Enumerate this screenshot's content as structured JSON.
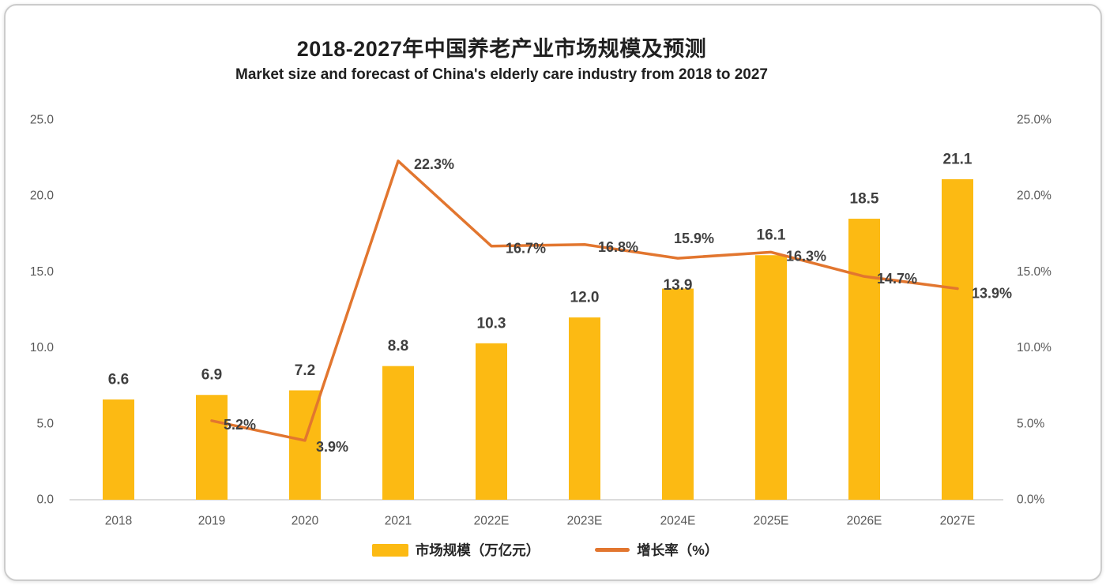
{
  "chart_data": {
    "type": "bar+line",
    "title": "2018-2027年中国养老产业市场规模及预测",
    "subtitle": "Market size and forecast of China's elderly care industry from 2018 to 2027",
    "categories": [
      "2018",
      "2019",
      "2020",
      "2021",
      "2022E",
      "2023E",
      "2024E",
      "2025E",
      "2026E",
      "2027E"
    ],
    "series": [
      {
        "name": "市场规模（万亿元）",
        "type": "bar",
        "values": [
          6.6,
          6.9,
          7.2,
          8.8,
          10.3,
          12.0,
          13.9,
          16.1,
          18.5,
          21.1
        ],
        "labels": [
          "6.6",
          "6.9",
          "7.2",
          "8.8",
          "10.3",
          "12.0",
          "13.9",
          "16.1",
          "18.5",
          "21.1"
        ]
      },
      {
        "name": "增长率（%）",
        "type": "line",
        "values": [
          null,
          5.2,
          3.9,
          22.3,
          16.7,
          16.8,
          15.9,
          16.3,
          14.7,
          13.9
        ],
        "labels": [
          null,
          "5.2%",
          "3.9%",
          "22.3%",
          "16.7%",
          "16.8%",
          "15.9%",
          "16.3%",
          "14.7%",
          "13.9%"
        ]
      }
    ],
    "left_axis": {
      "min": 0,
      "max": 25,
      "ticks": [
        "25.0",
        "20.0",
        "15.0",
        "10.0",
        "5.0",
        "0.0"
      ]
    },
    "right_axis": {
      "min": 0,
      "max": 25,
      "ticks": [
        "25.0%",
        "20.0%",
        "15.0%",
        "10.0%",
        "5.0%",
        "0.0%"
      ]
    },
    "legend": {
      "position": "bottom",
      "items": [
        {
          "label": "市场规模（万亿元）",
          "swatch": "bar"
        },
        {
          "label": "增长率（%）",
          "swatch": "line"
        }
      ]
    },
    "grid": "off"
  },
  "colors": {
    "bar": "#FCBA13",
    "line": "#E2762F",
    "axis_text": "#595959",
    "data_label_text": "#3F3F3F",
    "title_text": "#1F1F1F",
    "baseline": "#DCDCDC",
    "card_border": "#CCCCCC"
  }
}
